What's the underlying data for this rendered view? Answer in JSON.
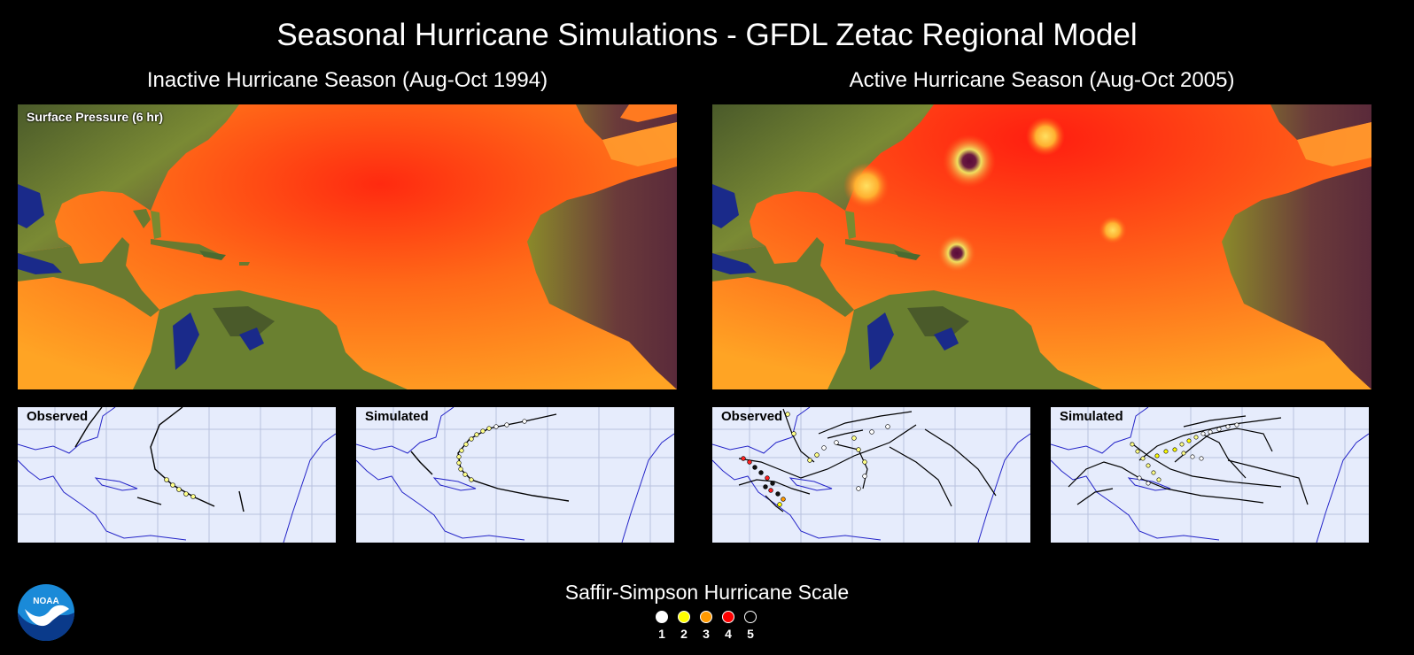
{
  "title": "Seasonal Hurricane Simulations - GFDL Zetac Regional Model",
  "left": {
    "subtitle": "Inactive Hurricane Season (Aug-Oct 1994)",
    "map_label": "Surface Pressure (6 hr)",
    "observed_label": "Observed",
    "simulated_label": "Simulated"
  },
  "right": {
    "subtitle": "Active Hurricane Season (Aug-Oct 2005)",
    "observed_label": "Observed",
    "simulated_label": "Simulated"
  },
  "scale": {
    "title": "Saffir-Simpson Hurricane Scale",
    "categories": [
      {
        "label": "1",
        "color": "#ffffff"
      },
      {
        "label": "2",
        "color": "#ffff00"
      },
      {
        "label": "3",
        "color": "#ff9900"
      },
      {
        "label": "4",
        "color": "#ff0000"
      },
      {
        "label": "5",
        "color": "#000000"
      }
    ]
  },
  "logo": {
    "text": "NOAA",
    "icon": "noaa-logo"
  },
  "colors": {
    "ocean_high": "#ff2a10",
    "ocean_low": "#ffa020",
    "land": "#6a8030",
    "track_bg": "#e6ecfc",
    "grid": "#b8c2de",
    "coast": "#2424c8"
  }
}
